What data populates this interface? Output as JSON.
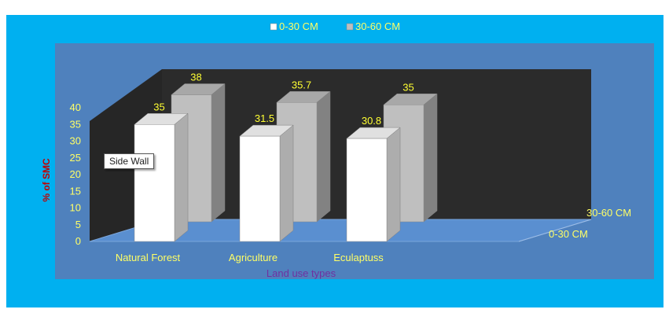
{
  "chart_data": {
    "type": "bar",
    "categories": [
      "Natural Forest",
      "Agriculture",
      "Eculaptuss"
    ],
    "series": [
      {
        "name": "0-30 CM",
        "values": [
          35,
          31.5,
          30.8
        ],
        "color": "#ffffff"
      },
      {
        "name": "30-60 CM",
        "values": [
          38,
          35.7,
          35
        ],
        "color": "#bfbfbf"
      }
    ],
    "xlabel": "Land use types",
    "ylabel": "% of SMC",
    "ylim": [
      0,
      40
    ],
    "yticks": [
      "0",
      "5",
      "10",
      "15",
      "20",
      "25",
      "30",
      "35",
      "40"
    ],
    "legend_position": "top",
    "style": "3d-column",
    "colors": {
      "chart_area": "#00b0f0",
      "plot_area": "#4f81bd",
      "back_wall": "#262626",
      "floor": "#4f81bd",
      "axis_text": "#ffff66",
      "xlabel": "#7030a0",
      "ylabel": "#c00000"
    }
  },
  "tooltip": {
    "text": "Side Wall"
  }
}
